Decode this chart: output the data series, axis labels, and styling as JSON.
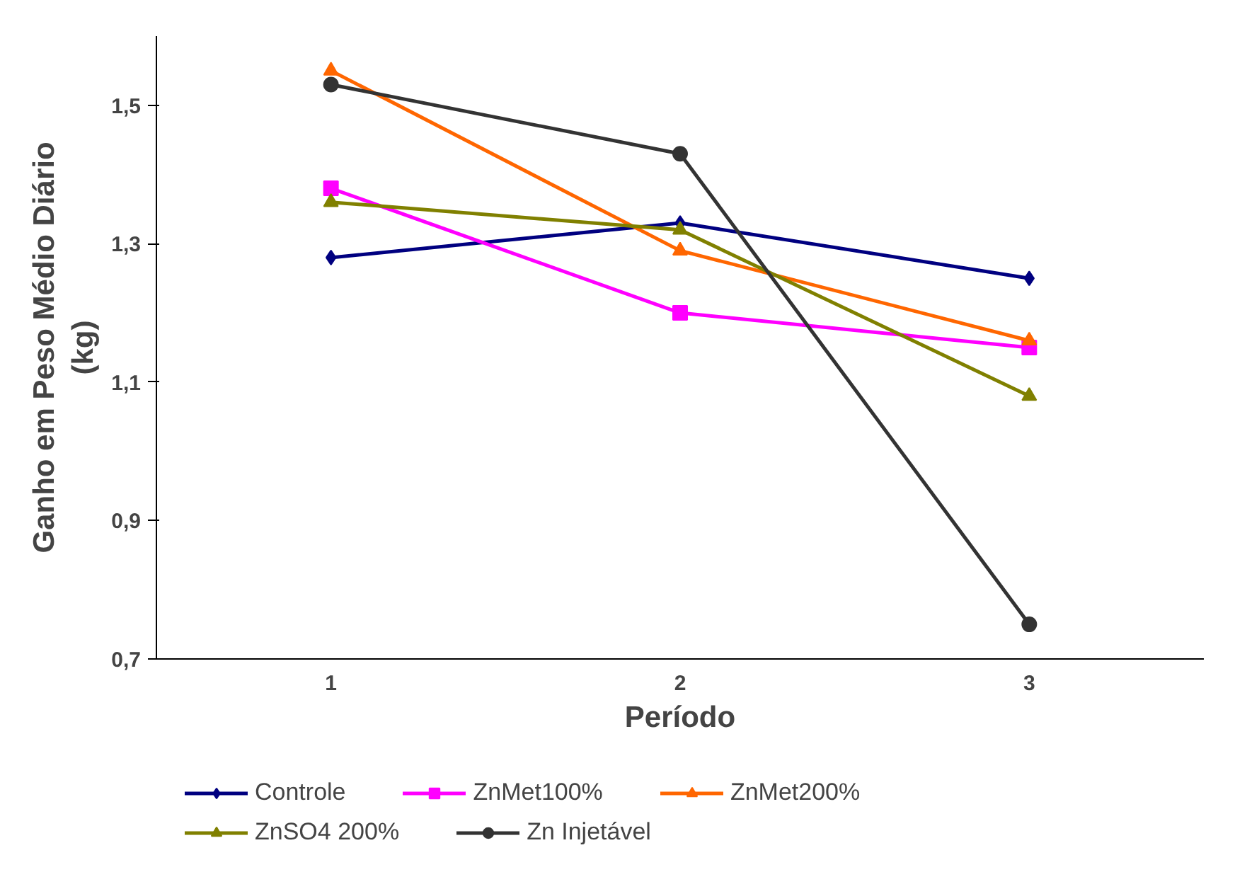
{
  "chart_data": {
    "type": "line",
    "xlabel": "Período",
    "ylabel": "Ganho em Peso Médio Diário (kg)",
    "categories": [
      "1",
      "2",
      "3"
    ],
    "ylim": [
      0.7,
      1.6
    ],
    "yticks": [
      {
        "value": 0.7,
        "label": "0,7"
      },
      {
        "value": 0.9,
        "label": "0,9"
      },
      {
        "value": 1.1,
        "label": "1,1"
      },
      {
        "value": 1.3,
        "label": "1,3"
      },
      {
        "value": 1.5,
        "label": "1,5"
      }
    ],
    "grid": false,
    "legend": "bottom",
    "series": [
      {
        "name": "Controle",
        "color": "#000080",
        "marker": "diamond",
        "values": [
          1.28,
          1.33,
          1.25
        ]
      },
      {
        "name": "ZnMet100%",
        "color": "#ff00ff",
        "marker": "square",
        "values": [
          1.38,
          1.2,
          1.15
        ]
      },
      {
        "name": "ZnMet200%",
        "color": "#ff6600",
        "marker": "triangle",
        "values": [
          1.55,
          1.29,
          1.16
        ]
      },
      {
        "name": "ZnSO4 200%",
        "color": "#808000",
        "marker": "triangle",
        "values": [
          1.36,
          1.32,
          1.08
        ]
      },
      {
        "name": "Zn Injetável",
        "color": "#333333",
        "marker": "circle",
        "values": [
          1.53,
          1.43,
          0.75
        ]
      }
    ]
  }
}
